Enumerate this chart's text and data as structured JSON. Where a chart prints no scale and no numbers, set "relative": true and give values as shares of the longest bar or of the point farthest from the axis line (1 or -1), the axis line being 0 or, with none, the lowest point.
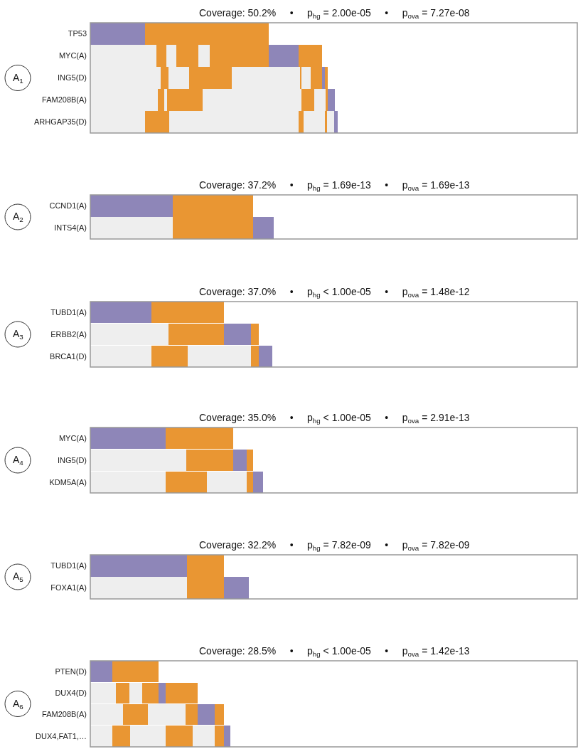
{
  "chart_data": [
    {
      "type": "bar",
      "orientation": "horizontal",
      "stacked": true,
      "relative": true,
      "title": "Coverage: 50.2%     •     p$_{hg}$ = 2.00e-05     •     p$_{ova}$ = 7.27e-08",
      "annotations": [
        "A$_{1}$"
      ],
      "categories": [
        "TP53",
        "MYC(A)",
        "ING5(D)",
        "FAM208B(A)",
        "ARHGAP35(D)"
      ],
      "series": [
        {
          "values": [
            0.221,
            0.267,
            0.284,
            0.273,
            0.221
          ],
          "colors": [
            "#8e86b8",
            "#eeeeee",
            "#eeeeee",
            "#eeeeee",
            "#eeeeee"
          ]
        },
        {
          "values": [
            0.5,
            0.04,
            0.032,
            0.026,
            0.098
          ],
          "colors": [
            "#e99633",
            "#e99633",
            "#e99633",
            "#e99633",
            "#e99633"
          ]
        },
        {
          "values": [
            null,
            0.041,
            0.083,
            0.011,
            0.523
          ],
          "colors": [
            "#eeeeee",
            "#eeeeee",
            "#eeeeee",
            "#eeeeee",
            "#eeeeee"
          ]
        },
        {
          "values": [
            null,
            0.089,
            0.173,
            0.144,
            0.02
          ],
          "colors": [
            "#e99633",
            "#e99633",
            "#e99633",
            "#e99633",
            "#e99633"
          ]
        },
        {
          "values": [
            null,
            0.046,
            0.276,
            0.399,
            0.086
          ],
          "colors": [
            "#eeeeee",
            "#eeeeee",
            "#eeeeee",
            "#eeeeee",
            "#eeeeee"
          ]
        },
        {
          "values": [
            null,
            0.238,
            0.005,
            0.052,
            0.009
          ],
          "colors": [
            "#e99633",
            "#e99633",
            "#e99633",
            "#e99633",
            "#e99633"
          ]
        },
        {
          "values": [
            null,
            0.121,
            0.038,
            0.046,
            0.029
          ],
          "colors": [
            "#eeeeee",
            "#8e86b8",
            "#eeeeee",
            "#eeeeee",
            "#eeeeee"
          ]
        },
        {
          "values": [
            null,
            0.095,
            0.046,
            0.009,
            0.014
          ],
          "colors": [
            "#e99633",
            "#e99633",
            "#e99633",
            "#e99633",
            "#8e86b8"
          ]
        },
        {
          "values": [
            null,
            null,
            0.011,
            0.029,
            null
          ],
          "colors": [
            "#8e86b8",
            "#8e86b8",
            "#8e86b8",
            "#8e86b8",
            "#8e86b8"
          ]
        },
        {
          "values": [
            null,
            null,
            0.012,
            null,
            null
          ],
          "colors": [
            "#e99633",
            "#e99633",
            "#e99633",
            "#e99633",
            "#e99633"
          ]
        }
      ]
    },
    {
      "type": "bar",
      "orientation": "horizontal",
      "stacked": true,
      "relative": true,
      "title": "Coverage: 37.2%     •     p$_{hg}$ = 1.69e-13     •     p$_{ova}$ = 1.69e-13",
      "annotations": [
        "A$_{2}$"
      ],
      "categories": [
        "CCND1(A)",
        "INTS4(A)"
      ],
      "series": [
        {
          "values": [
            0.45,
            0.45
          ],
          "colors": [
            "#8e86b8",
            "#eeeeee"
          ]
        },
        {
          "values": [
            0.438,
            0.438
          ],
          "colors": [
            "#e99633",
            "#e99633"
          ]
        },
        {
          "values": [
            null,
            0.112
          ],
          "colors": [
            "#8e86b8",
            "#8e86b8"
          ]
        }
      ]
    },
    {
      "type": "bar",
      "orientation": "horizontal",
      "stacked": true,
      "relative": true,
      "title": "Coverage: 37.0%     •     p$_{hg}$ < 1.00e-05     •     p$_{ova}$ = 1.48e-12",
      "annotations": [
        "A$_{3}$"
      ],
      "categories": [
        "TUBD1(A)",
        "ERBB2(A)",
        "BRCA1(D)"
      ],
      "series": [
        {
          "values": [
            0.336,
            0.43,
            0.336
          ],
          "colors": [
            "#8e86b8",
            "#eeeeee",
            "#eeeeee"
          ]
        },
        {
          "values": [
            0.398,
            0.304,
            0.199
          ],
          "colors": [
            "#e99633",
            "#e99633",
            "#e99633"
          ]
        },
        {
          "values": [
            null,
            0.149,
            0.348
          ],
          "colors": [
            "#8e86b8",
            "#8e86b8",
            "#eeeeee"
          ]
        },
        {
          "values": [
            null,
            0.043,
            0.043
          ],
          "colors": [
            "#e99633",
            "#e99633",
            "#e99633"
          ]
        },
        {
          "values": [
            null,
            null,
            0.074
          ],
          "colors": [
            "#8e86b8",
            "#8e86b8",
            "#8e86b8"
          ]
        }
      ]
    },
    {
      "type": "bar",
      "orientation": "horizontal",
      "stacked": true,
      "relative": true,
      "title": "Coverage: 35.0%     •     p$_{hg}$ < 1.00e-05     •     p$_{ova}$ = 2.91e-13",
      "annotations": [
        "A$_{4}$"
      ],
      "categories": [
        "MYC(A)",
        "ING5(D)",
        "KDM5A(A)"
      ],
      "series": [
        {
          "values": [
            0.436,
            0.556,
            0.436
          ],
          "colors": [
            "#8e86b8",
            "#eeeeee",
            "#eeeeee"
          ]
        },
        {
          "values": [
            0.391,
            0.271,
            0.239
          ],
          "colors": [
            "#e99633",
            "#e99633",
            "#e99633"
          ]
        },
        {
          "values": [
            null,
            0.078,
            0.23
          ],
          "colors": [
            "#8e86b8",
            "#8e86b8",
            "#eeeeee"
          ]
        },
        {
          "values": [
            null,
            0.037,
            0.037
          ],
          "colors": [
            "#e99633",
            "#e99633",
            "#e99633"
          ]
        },
        {
          "values": [
            null,
            null,
            0.058
          ],
          "colors": [
            "#8e86b8",
            "#8e86b8",
            "#8e86b8"
          ]
        }
      ]
    },
    {
      "type": "bar",
      "orientation": "horizontal",
      "stacked": true,
      "relative": true,
      "title": "Coverage: 32.2%     •     p$_{hg}$ = 7.82e-09     •     p$_{ova}$ = 7.82e-09",
      "annotations": [
        "A$_{5}$"
      ],
      "categories": [
        "TUBD1(A)",
        "FOXA1(A)"
      ],
      "series": [
        {
          "values": [
            0.61,
            0.61
          ],
          "colors": [
            "#8e86b8",
            "#eeeeee"
          ]
        },
        {
          "values": [
            0.233,
            0.233
          ],
          "colors": [
            "#e99633",
            "#e99633"
          ]
        },
        {
          "values": [
            null,
            0.157
          ],
          "colors": [
            "#8e86b8",
            "#8e86b8"
          ]
        }
      ]
    },
    {
      "type": "bar",
      "orientation": "horizontal",
      "stacked": true,
      "relative": true,
      "title": "Coverage: 28.5%     •     p$_{hg}$ < 1.00e-05     •     p$_{ova}$ = 1.42e-13",
      "annotations": [
        "A$_{6}$"
      ],
      "categories": [
        "PTEN(D)",
        "DUX4(D)",
        "FAM208B(A)",
        "DUX4,FAT1,…"
      ],
      "series": [
        {
          "values": [
            0.157,
            0.183,
            0.234,
            0.157
          ],
          "colors": [
            "#8e86b8",
            "#eeeeee",
            "#eeeeee",
            "#eeeeee"
          ]
        },
        {
          "values": [
            0.33,
            0.096,
            0.177,
            0.127
          ],
          "colors": [
            "#e99633",
            "#e99633",
            "#e99633",
            "#e99633"
          ]
        },
        {
          "values": [
            null,
            0.092,
            0.269,
            0.254
          ],
          "colors": [
            "#eeeeee",
            "#eeeeee",
            "#eeeeee",
            "#eeeeee"
          ]
        },
        {
          "values": [
            null,
            0.116,
            0.086,
            0.193
          ],
          "colors": [
            "#e99633",
            "#e99633",
            "#e99633",
            "#e99633"
          ]
        },
        {
          "values": [
            null,
            0.051,
            0.122,
            0.157
          ],
          "colors": [
            "#8e86b8",
            "#8e86b8",
            "#8e86b8",
            "#eeeeee"
          ]
        },
        {
          "values": [
            null,
            0.228,
            0.066,
            0.066
          ],
          "colors": [
            "#e99633",
            "#e99633",
            "#e99633",
            "#e99633"
          ]
        },
        {
          "values": [
            null,
            null,
            null,
            0.046
          ],
          "colors": [
            "#8e86b8",
            "#8e86b8",
            "#8e86b8",
            "#8e86b8"
          ]
        }
      ]
    }
  ]
}
